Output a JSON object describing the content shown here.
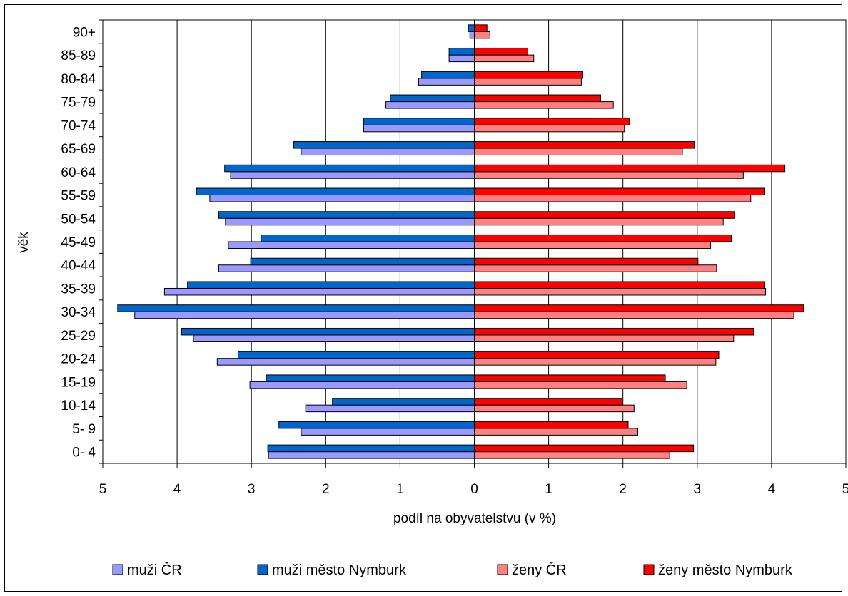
{
  "chart_data": {
    "type": "bar",
    "orientation": "horizontal",
    "layout": "population-pyramid",
    "categories": [
      "0- 4",
      "5- 9",
      "10-14",
      "15-19",
      "20-24",
      "25-29",
      "30-34",
      "35-39",
      "40-44",
      "45-49",
      "50-54",
      "55-59",
      "60-64",
      "65-69",
      "70-74",
      "75-79",
      "80-84",
      "85-89",
      "90+"
    ],
    "series": [
      {
        "name": "muži ČR",
        "side": "left",
        "color": "#9999ff",
        "values": [
          2.77,
          2.33,
          2.27,
          3.02,
          3.46,
          3.78,
          4.57,
          4.17,
          3.44,
          3.31,
          3.35,
          3.56,
          3.28,
          2.33,
          1.49,
          1.19,
          0.75,
          0.34,
          0.06
        ]
      },
      {
        "name": "muži město Nymburk",
        "side": "left",
        "color": "#0066cc",
        "values": [
          2.78,
          2.63,
          1.91,
          2.8,
          3.18,
          3.94,
          4.8,
          3.86,
          3.01,
          2.87,
          3.44,
          3.74,
          3.36,
          2.43,
          1.49,
          1.13,
          0.71,
          0.34,
          0.08
        ]
      },
      {
        "name": "ženy ČR",
        "side": "right",
        "color": "#ff8080",
        "values": [
          2.63,
          2.2,
          2.15,
          2.86,
          3.25,
          3.49,
          4.3,
          3.92,
          3.26,
          3.18,
          3.35,
          3.72,
          3.62,
          2.8,
          2.02,
          1.87,
          1.44,
          0.8,
          0.21
        ]
      },
      {
        "name": "ženy město Nymburk",
        "side": "right",
        "color": "#ff0000",
        "values": [
          2.95,
          2.07,
          1.99,
          2.57,
          3.29,
          3.76,
          4.43,
          3.91,
          3.01,
          3.46,
          3.5,
          3.91,
          4.18,
          2.96,
          2.09,
          1.7,
          1.46,
          0.72,
          0.17
        ]
      }
    ],
    "xlabel": "podíl na obyvatelstvu (v %)",
    "ylabel": "věk",
    "xlim": [
      -5,
      5
    ],
    "xticks": [
      -5,
      -4,
      -3,
      -2,
      -1,
      0,
      1,
      2,
      3,
      4,
      5
    ],
    "xtick_labels": [
      "5",
      "4",
      "3",
      "2",
      "1",
      "0",
      "1",
      "2",
      "3",
      "4",
      "5"
    ],
    "grid": true,
    "legend_position": "bottom"
  },
  "colors": {
    "muzi_cr": "#9999ff",
    "muzi_nymburk": "#0066cc",
    "zeny_cr": "#ff8080",
    "zeny_nymburk": "#ff0000"
  }
}
